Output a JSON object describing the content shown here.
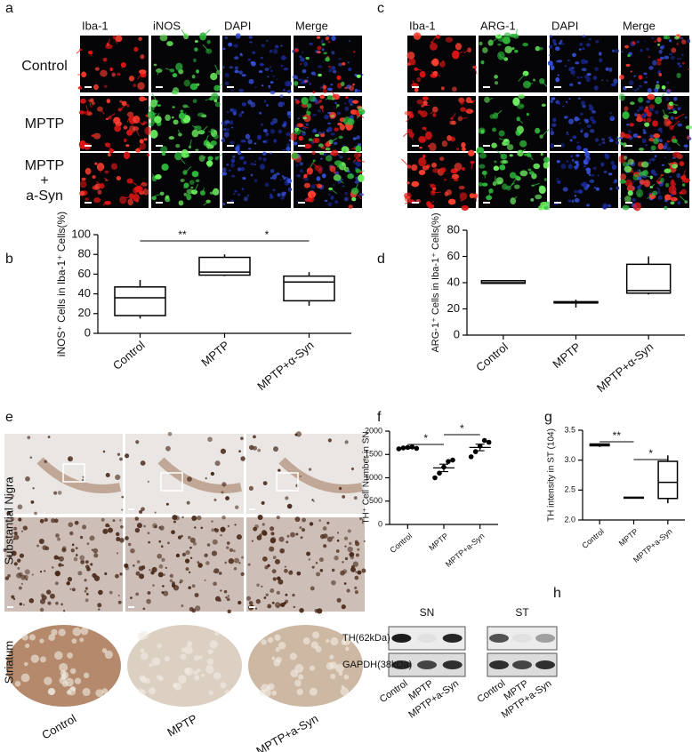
{
  "panel_labels": [
    "a",
    "b",
    "c",
    "d",
    "e",
    "f",
    "g",
    "h"
  ],
  "panel_a": {
    "columns": [
      "Iba-1",
      "iNOS",
      "DAPI",
      "Merge"
    ],
    "rows": [
      "Control",
      "MPTP",
      [
        "MPTP",
        "+",
        "a-Syn"
      ]
    ]
  },
  "panel_c": {
    "columns": [
      "Iba-1",
      "ARG-1",
      "DAPI",
      "Merge"
    ]
  },
  "panel_e": {
    "rows": [
      "Substantial Nigra",
      "Striatum"
    ],
    "columns": [
      "Control",
      "MPTP",
      "MPTP+a-Syn"
    ]
  },
  "panel_h": {
    "groups": [
      "SN",
      "ST"
    ],
    "rows": [
      "TH(62kDa)",
      "GAPDH(38kDa)"
    ],
    "lanes": [
      "Control",
      "MPTP",
      "MPTP+a-Syn",
      "Control",
      "MPTP",
      "MPTP+a-Syn"
    ]
  },
  "chart_data": [
    {
      "type": "box",
      "ylabel": "iNOS⁺ Cells in Iba-1⁺ Cells(%)",
      "categories": [
        "Control",
        "MPTP",
        "MPTP+α-Syn"
      ],
      "boxes": [
        {
          "min": 15,
          "q1": 18,
          "median": 36,
          "q3": 47,
          "max": 54
        },
        {
          "min": 58,
          "q1": 59,
          "median": 62,
          "q3": 77,
          "max": 80
        },
        {
          "min": 28,
          "q1": 33,
          "median": 52,
          "q3": 58,
          "max": 62
        }
      ],
      "ylim": [
        0,
        100
      ],
      "yticks": [
        0,
        20,
        40,
        60,
        80,
        100
      ],
      "color": "#000000",
      "annotations": [
        "**",
        "*"
      ]
    },
    {
      "type": "box",
      "ylabel": "ARG-1⁺ Cells in Iba-1⁺ Cells(%)",
      "categories": [
        "Control",
        "MPTP",
        "MPTP+α-Syn"
      ],
      "boxes": [
        {
          "min": 39,
          "q1": 39.5,
          "median": 40,
          "q3": 41.5,
          "max": 42
        },
        {
          "min": 21,
          "q1": 24.5,
          "median": 25,
          "q3": 25.5,
          "max": 27
        },
        {
          "min": 31,
          "q1": 32,
          "median": 34,
          "q3": 54,
          "max": 60
        }
      ],
      "ylim": [
        0,
        80
      ],
      "yticks": [
        0,
        20,
        40,
        60,
        80
      ],
      "color": "#000000"
    },
    {
      "type": "dot",
      "ylabel": "TH⁺ Cell Number in SN",
      "categories": [
        "Control",
        "MPTP",
        "MPTP+a-Syn"
      ],
      "points": [
        [
          1620,
          1640,
          1650,
          1660,
          1630
        ],
        [
          1000,
          1100,
          1230,
          1350,
          1380
        ],
        [
          1450,
          1560,
          1680,
          1800,
          1760
        ]
      ],
      "means": [
        1640,
        1212,
        1650
      ],
      "errors": [
        10,
        80,
        70
      ],
      "ylim": [
        0,
        2000
      ],
      "yticks": [
        0,
        500,
        1000,
        1500,
        2000
      ],
      "color": "#000000",
      "annotations": [
        "*",
        "*"
      ]
    },
    {
      "type": "box",
      "ylabel": "TH intensity in ST (104)",
      "categories": [
        "Control",
        "MPTP",
        "MPTP+a-Syn"
      ],
      "boxes": [
        {
          "min": 3.22,
          "q1": 3.24,
          "median": 3.26,
          "q3": 3.27,
          "max": 3.28
        },
        {
          "min": 2.37,
          "q1": 2.37,
          "median": 2.37,
          "q3": 2.38,
          "max": 2.38
        },
        {
          "min": 2.28,
          "q1": 2.36,
          "median": 2.63,
          "q3": 2.98,
          "max": 3.08
        }
      ],
      "ylim": [
        2,
        3.5
      ],
      "yticks": [
        {
          "value": 2,
          "label": "2.0"
        },
        2.5,
        {
          "value": 3,
          "label": "3.0"
        },
        3.5
      ],
      "color": "#000000",
      "annotations": [
        "**",
        "*"
      ]
    }
  ]
}
